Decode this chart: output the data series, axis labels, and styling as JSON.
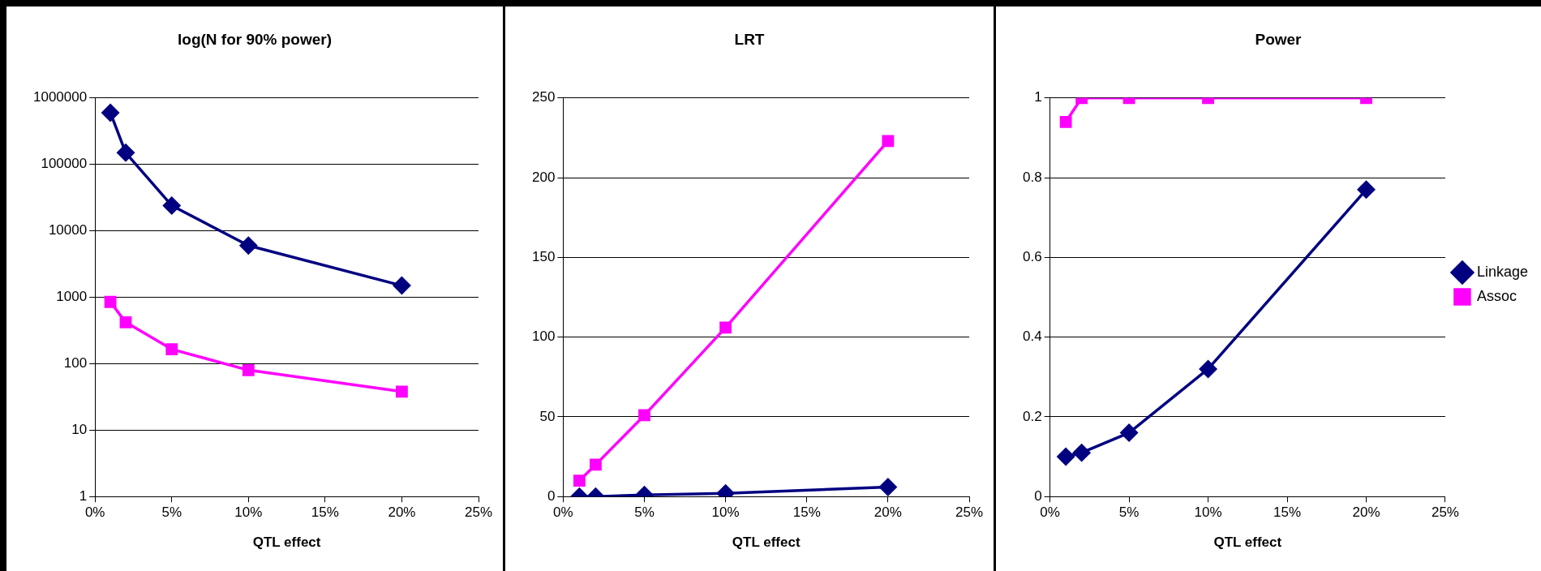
{
  "chart_data": [
    {
      "type": "line",
      "title": "log(N for 90% power)",
      "xlabel": "QTL effect",
      "x": [
        1,
        2,
        5,
        10,
        20
      ],
      "xlim": [
        0,
        25
      ],
      "xticks": [
        {
          "value": 0,
          "label": "0%"
        },
        {
          "value": 5,
          "label": "5%"
        },
        {
          "value": 10,
          "label": "10%"
        },
        {
          "value": 15,
          "label": "15%"
        },
        {
          "value": 20,
          "label": "20%"
        },
        {
          "value": 25,
          "label": "25%"
        }
      ],
      "log": "y",
      "ylim": [
        1,
        1000000
      ],
      "yticks": [
        1,
        10,
        100,
        1000,
        10000,
        100000,
        1000000
      ],
      "grid": "y",
      "legend": false,
      "line_style": "solid",
      "series": [
        {
          "color": "#000080",
          "marker": "diamond",
          "values": [
            600000,
            150000,
            24000,
            6000,
            1500
          ]
        },
        {
          "color": "#ff00ff",
          "marker": "square",
          "values": [
            850,
            420,
            165,
            80,
            38
          ]
        }
      ]
    },
    {
      "type": "line",
      "title": "LRT",
      "xlabel": "QTL effect",
      "x": [
        1,
        2,
        5,
        10,
        20
      ],
      "xlim": [
        0,
        25
      ],
      "xticks": [
        {
          "value": 0,
          "label": "0%"
        },
        {
          "value": 5,
          "label": "5%"
        },
        {
          "value": 10,
          "label": "10%"
        },
        {
          "value": 15,
          "label": "15%"
        },
        {
          "value": 20,
          "label": "20%"
        },
        {
          "value": 25,
          "label": "25%"
        }
      ],
      "ylim": [
        0,
        250
      ],
      "yticks": [
        0,
        50,
        100,
        150,
        200,
        250
      ],
      "grid": "y",
      "legend": false,
      "line_style": "solid",
      "series": [
        {
          "color": "#000080",
          "marker": "diamond",
          "values": [
            0,
            0,
            1,
            2,
            6
          ]
        },
        {
          "color": "#ff00ff",
          "marker": "square",
          "values": [
            10,
            20,
            51,
            106,
            223
          ]
        }
      ]
    },
    {
      "type": "line",
      "title": "Power",
      "xlabel": "QTL effect",
      "x": [
        1,
        2,
        5,
        10,
        20
      ],
      "xlim": [
        0,
        25
      ],
      "xticks": [
        {
          "value": 0,
          "label": "0%"
        },
        {
          "value": 5,
          "label": "5%"
        },
        {
          "value": 10,
          "label": "10%"
        },
        {
          "value": 15,
          "label": "15%"
        },
        {
          "value": 20,
          "label": "20%"
        },
        {
          "value": 25,
          "label": "25%"
        }
      ],
      "ylim": [
        0,
        1
      ],
      "yticks": [
        0,
        0.2,
        0.4,
        0.6,
        0.8,
        1
      ],
      "grid": "y",
      "legend": "right",
      "line_style": "solid",
      "series": [
        {
          "name": "Linkage",
          "color": "#000080",
          "marker": "diamond",
          "values": [
            0.1,
            0.11,
            0.16,
            0.32,
            0.77
          ]
        },
        {
          "name": "Assoc",
          "color": "#ff00ff",
          "marker": "square",
          "values": [
            0.94,
            1.0,
            1.0,
            1.0,
            1.0
          ]
        }
      ]
    }
  ]
}
